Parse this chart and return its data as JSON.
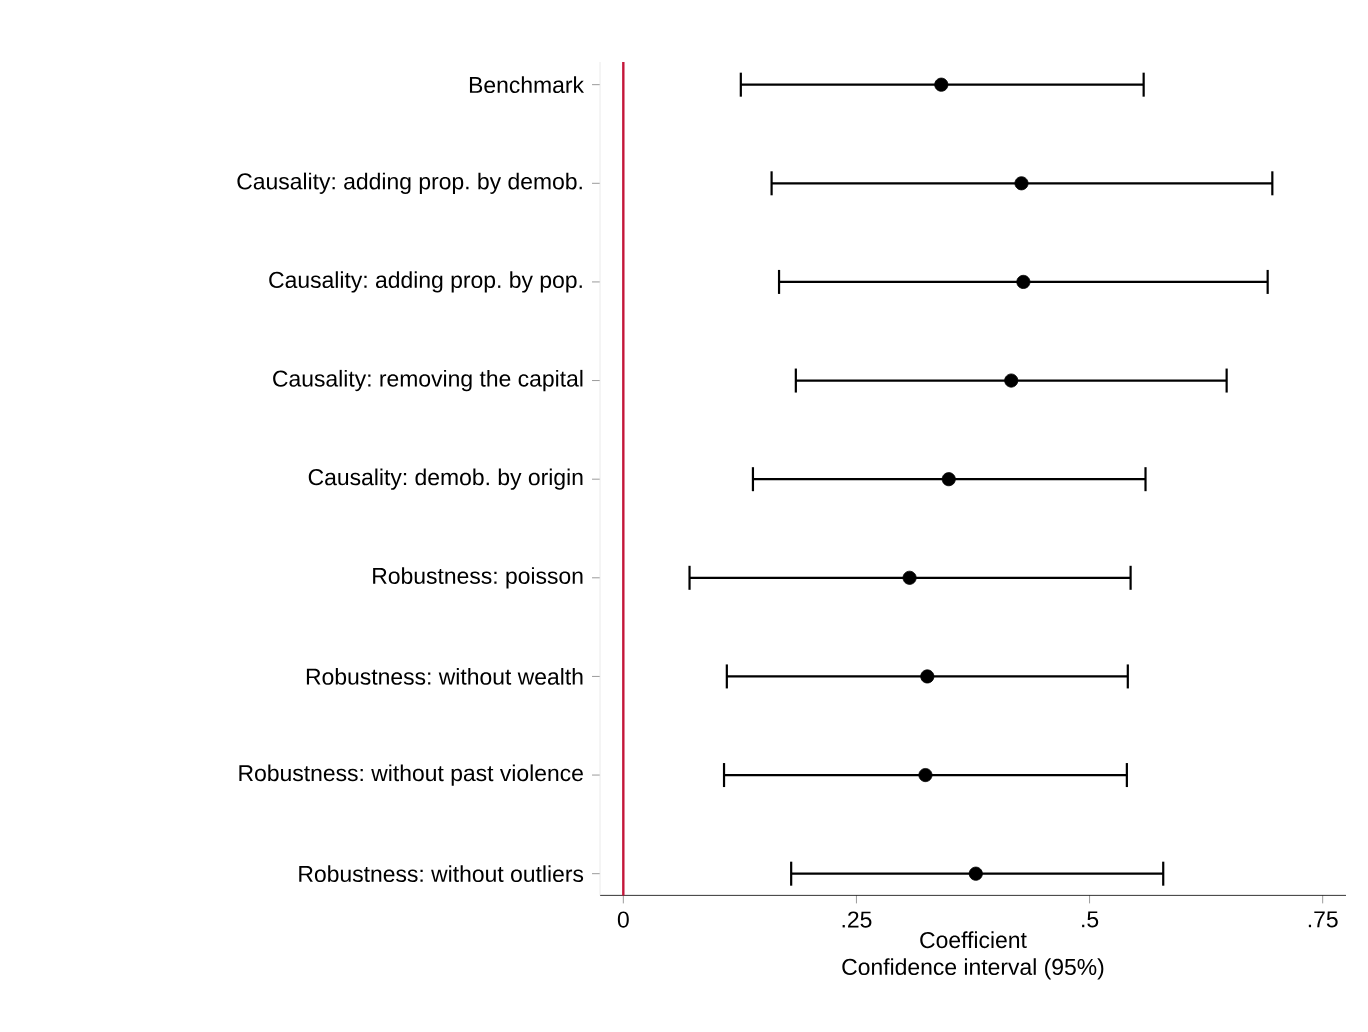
{
  "chart_data": {
    "type": "scatter",
    "orientation": "horizontal",
    "marker": "circle",
    "grid": false,
    "categories": [
      "Benchmark",
      "Causality: adding prop. by demob.",
      "Causality: adding prop. by pop.",
      "Causality: removing the capital",
      "Causality: demob. by origin",
      "Robustness: poisson",
      "Robustness: without wealth",
      "Robustness: without past violence",
      "Robustness: without outliers"
    ],
    "values": [
      0.341,
      0.427,
      0.429,
      0.416,
      0.349,
      0.307,
      0.326,
      0.324,
      0.378
    ],
    "errors": [
      [
        0.126,
        0.558
      ],
      [
        0.159,
        0.696
      ],
      [
        0.167,
        0.691
      ],
      [
        0.185,
        0.647
      ],
      [
        0.139,
        0.56
      ],
      [
        0.071,
        0.544
      ],
      [
        0.111,
        0.541
      ],
      [
        0.108,
        0.54
      ],
      [
        0.18,
        0.579
      ]
    ],
    "color": "#000000",
    "xlim": [
      -0.025,
      0.775
    ],
    "xticks": [
      0,
      {
        "value": 0.25,
        "label": ".25"
      },
      {
        "value": 0.5,
        "label": ".5"
      },
      {
        "value": 0.75,
        "label": ".75"
      }
    ],
    "xlabel": "Coefficient",
    "annotations": [
      "Confidence interval (95%)"
    ],
    "ref_lines": [
      {
        "axis": "x",
        "value": 0,
        "color": "#c4163a"
      }
    ]
  }
}
